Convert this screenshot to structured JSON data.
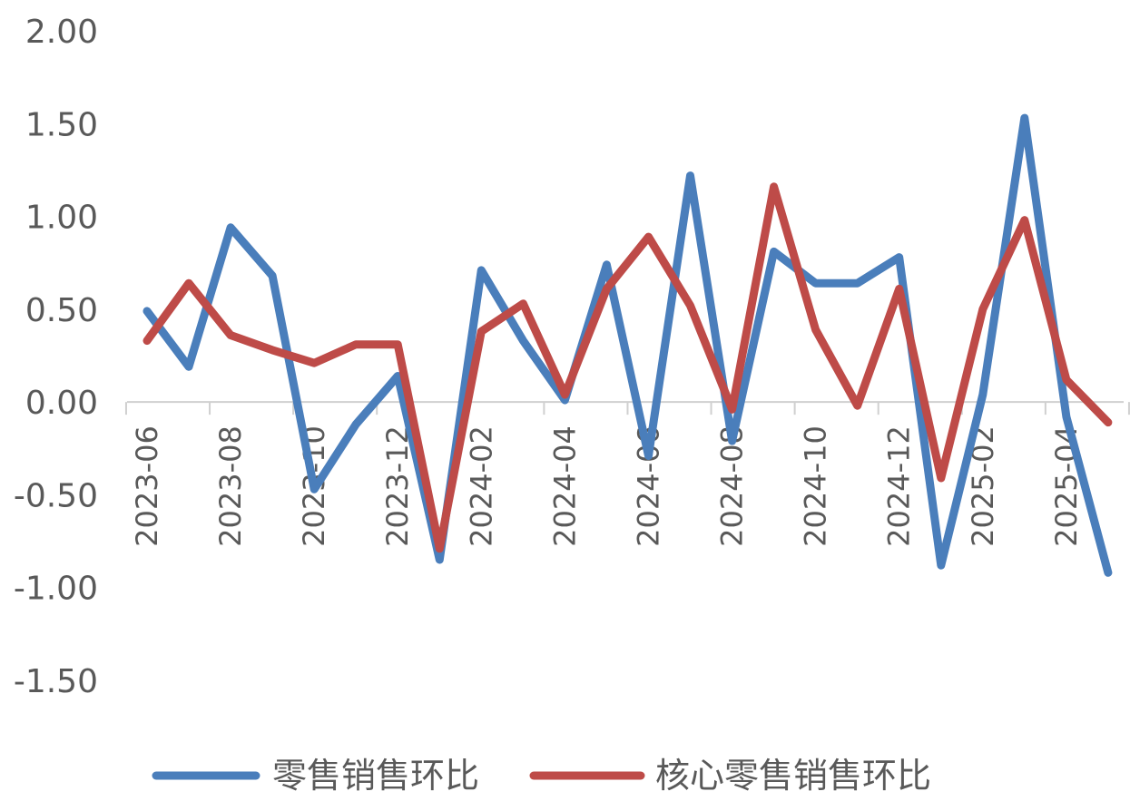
{
  "chart_data": {
    "type": "line",
    "title": "",
    "xlabel": "",
    "ylabel": "",
    "ylim": [
      -1.5,
      2.0
    ],
    "ytick_labels": [
      "2.00",
      "1.50",
      "1.00",
      "0.50",
      "0.00",
      "-0.50",
      "-1.00",
      "-1.50"
    ],
    "ytick_values": [
      2.0,
      1.5,
      1.0,
      0.5,
      0.0,
      -0.5,
      -1.0,
      -1.5
    ],
    "x": [
      "2023-06",
      "2023-07",
      "2023-08",
      "2023-09",
      "2023-10",
      "2023-11",
      "2023-12",
      "2024-01",
      "2024-02",
      "2024-03",
      "2024-04",
      "2024-05",
      "2024-06",
      "2024-07",
      "2024-08",
      "2024-09",
      "2024-10",
      "2024-11",
      "2024-12",
      "2025-01",
      "2025-02",
      "2025-03",
      "2025-04",
      "2025-05"
    ],
    "xtick_labels": [
      "2023-06",
      "2023-08",
      "2023-10",
      "2023-12",
      "2024-02",
      "2024-04",
      "2024-06",
      "2024-08",
      "2024-10",
      "2024-12",
      "2025-02",
      "2025-04"
    ],
    "grid": false,
    "legend_position": "bottom",
    "series": [
      {
        "name": "零售销售环比",
        "color": "#4a7ebb",
        "values": [
          0.49,
          0.19,
          0.94,
          0.68,
          -0.47,
          -0.12,
          0.14,
          -0.85,
          0.71,
          0.33,
          0.01,
          0.74,
          -0.29,
          1.22,
          -0.21,
          0.81,
          0.64,
          0.64,
          0.78,
          -0.88,
          0.04,
          1.53,
          -0.08,
          -0.92
        ]
      },
      {
        "name": "核心零售销售环比",
        "color": "#be4b48",
        "values": [
          0.33,
          0.64,
          0.36,
          0.28,
          0.21,
          0.31,
          0.31,
          -0.79,
          0.38,
          0.53,
          0.04,
          0.61,
          0.89,
          0.52,
          -0.04,
          1.16,
          0.39,
          -0.02,
          0.61,
          -0.41,
          0.5,
          0.98,
          0.12,
          -0.11
        ]
      }
    ]
  }
}
